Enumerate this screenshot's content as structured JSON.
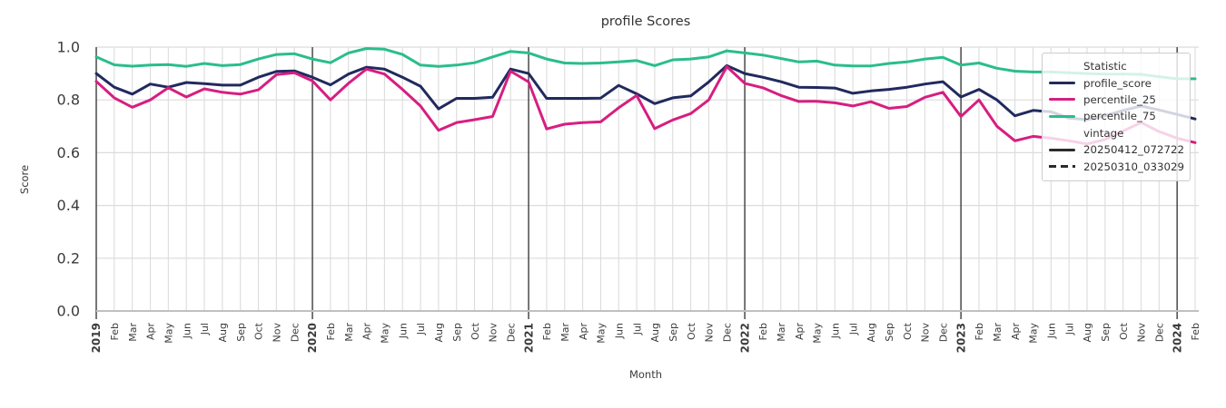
{
  "figure": {
    "title": "profile Scores",
    "xlabel": "Month",
    "ylabel": "Score"
  },
  "legend": {
    "sections": [
      {
        "title": "Statistic",
        "items": [
          {
            "label": "profile_score",
            "color": "#212a5e",
            "style": "solid"
          },
          {
            "label": "percentile_25",
            "color": "#d71e80",
            "style": "solid"
          },
          {
            "label": "percentile_75",
            "color": "#2abd8d",
            "style": "solid"
          }
        ]
      },
      {
        "title": "vintage",
        "items": [
          {
            "label": "20250412_072722",
            "color": "#2b2b2b",
            "style": "solid"
          },
          {
            "label": "20250310_033029",
            "color": "#2b2b2b",
            "style": "dashed"
          }
        ]
      }
    ]
  },
  "chart_data": {
    "type": "line",
    "title": "profile Scores",
    "xlabel": "Month",
    "ylabel": "Score",
    "ylim": [
      0.0,
      1.0
    ],
    "yticks": [
      "0.0",
      "0.2",
      "0.4",
      "0.6",
      "0.8",
      "1.0"
    ],
    "grid": true,
    "legend_position": "upper right",
    "x_labels": [
      "2019",
      "Feb",
      "Mar",
      "Apr",
      "May",
      "Jun",
      "Jul",
      "Aug",
      "Sep",
      "Oct",
      "Nov",
      "Dec",
      "2020",
      "Feb",
      "Mar",
      "Apr",
      "May",
      "Jun",
      "Jul",
      "Aug",
      "Sep",
      "Oct",
      "Nov",
      "Dec",
      "2021",
      "Feb",
      "Mar",
      "Apr",
      "May",
      "Jun",
      "Jul",
      "Aug",
      "Sep",
      "Oct",
      "Nov",
      "Dec",
      "2022",
      "Feb",
      "Mar",
      "Apr",
      "May",
      "Jun",
      "Jul",
      "Aug",
      "Sep",
      "Oct",
      "Nov",
      "Dec",
      "2023",
      "Feb",
      "Mar",
      "Apr",
      "May",
      "Jun",
      "Jul",
      "Aug",
      "Sep",
      "Oct",
      "Nov",
      "Dec",
      "2024",
      "Feb"
    ],
    "series": [
      {
        "name": "profile_score",
        "color": "#212a5e",
        "values": [
          0.9,
          0.848,
          0.822,
          0.86,
          0.848,
          0.866,
          0.862,
          0.856,
          0.856,
          0.886,
          0.908,
          0.91,
          0.886,
          0.857,
          0.898,
          0.924,
          0.917,
          0.886,
          0.852,
          0.766,
          0.806,
          0.806,
          0.81,
          0.917,
          0.9,
          0.806,
          0.806,
          0.806,
          0.807,
          0.855,
          0.823,
          0.786,
          0.808,
          0.815,
          0.868,
          0.93,
          0.9,
          0.886,
          0.869,
          0.848,
          0.847,
          0.845,
          0.825,
          0.834,
          0.84,
          0.848,
          0.86,
          0.869,
          0.811,
          0.84,
          0.8,
          0.74,
          0.76,
          0.755,
          0.731,
          0.725,
          0.74,
          0.76,
          0.777,
          0.762,
          0.745,
          0.728
        ]
      },
      {
        "name": "percentile_25",
        "color": "#d71e80",
        "values": [
          0.87,
          0.808,
          0.772,
          0.8,
          0.846,
          0.811,
          0.842,
          0.829,
          0.822,
          0.838,
          0.896,
          0.903,
          0.872,
          0.8,
          0.863,
          0.917,
          0.898,
          0.84,
          0.777,
          0.685,
          0.714,
          0.725,
          0.737,
          0.909,
          0.868,
          0.69,
          0.708,
          0.714,
          0.717,
          0.77,
          0.817,
          0.691,
          0.724,
          0.748,
          0.8,
          0.926,
          0.863,
          0.846,
          0.817,
          0.794,
          0.795,
          0.789,
          0.777,
          0.793,
          0.768,
          0.775,
          0.81,
          0.829,
          0.737,
          0.8,
          0.7,
          0.645,
          0.662,
          0.655,
          0.645,
          0.633,
          0.65,
          0.682,
          0.714,
          0.68,
          0.655,
          0.638
        ]
      },
      {
        "name": "percentile_75",
        "color": "#2abd8d",
        "values": [
          0.963,
          0.933,
          0.928,
          0.932,
          0.934,
          0.927,
          0.938,
          0.93,
          0.934,
          0.955,
          0.972,
          0.975,
          0.955,
          0.941,
          0.978,
          0.995,
          0.992,
          0.972,
          0.932,
          0.927,
          0.932,
          0.941,
          0.963,
          0.984,
          0.978,
          0.955,
          0.94,
          0.938,
          0.94,
          0.944,
          0.949,
          0.93,
          0.952,
          0.955,
          0.963,
          0.986,
          0.978,
          0.97,
          0.957,
          0.944,
          0.947,
          0.932,
          0.929,
          0.929,
          0.938,
          0.944,
          0.955,
          0.961,
          0.932,
          0.94,
          0.92,
          0.909,
          0.906,
          0.906,
          0.903,
          0.9,
          0.898,
          0.898,
          0.897,
          0.888,
          0.88,
          0.88
        ]
      }
    ],
    "style": {
      "grid_color": "#dcdcdc",
      "year_line_color": "#3c3c3c",
      "spine_color": "#c0c0c0",
      "tick_label_color": "#3b3b3b",
      "line_width": 3
    }
  }
}
